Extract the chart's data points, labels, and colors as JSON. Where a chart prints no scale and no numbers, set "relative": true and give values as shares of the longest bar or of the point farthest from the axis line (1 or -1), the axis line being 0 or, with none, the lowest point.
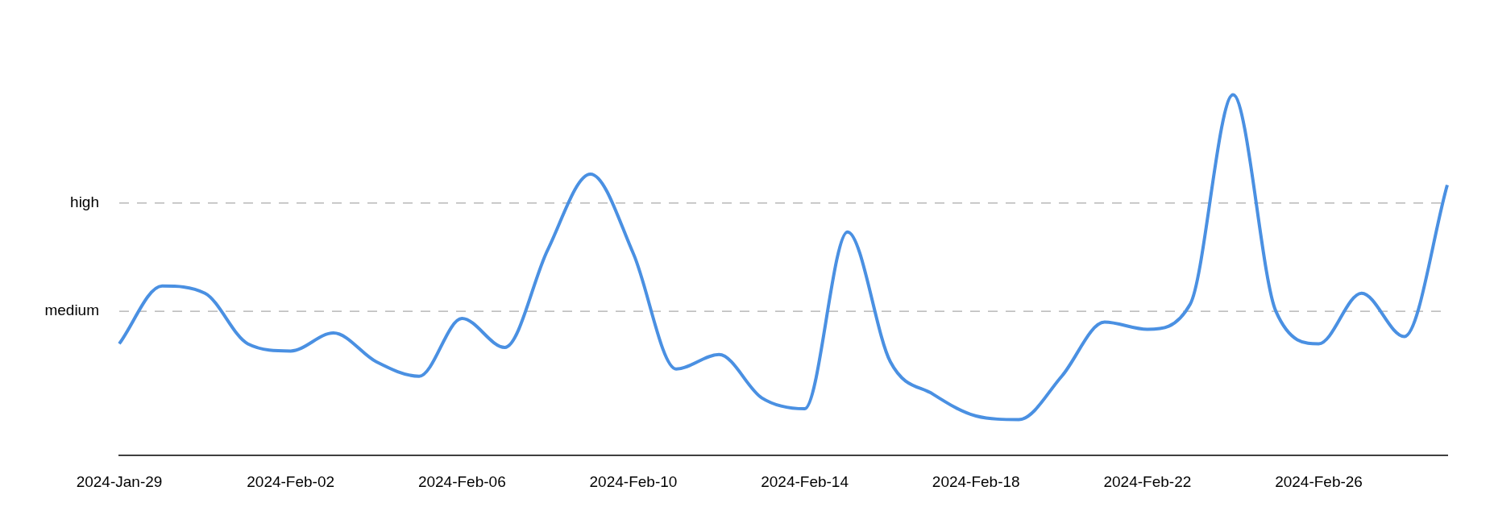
{
  "chart_data": {
    "type": "line",
    "relative": true,
    "categories": [
      "2024-Jan-29",
      null,
      null,
      null,
      "2024-Feb-02",
      null,
      null,
      null,
      "2024-Feb-06",
      null,
      null,
      null,
      "2024-Feb-10",
      null,
      null,
      null,
      "2024-Feb-14",
      null,
      null,
      null,
      "2024-Feb-18",
      null,
      null,
      null,
      "2024-Feb-22",
      null,
      null,
      null,
      "2024-Feb-26",
      null,
      null,
      null
    ],
    "series": [
      {
        "color": "#4a90e2",
        "values": [
          0.31,
          0.47,
          0.45,
          0.31,
          0.29,
          0.34,
          0.26,
          0.22,
          0.38,
          0.3,
          0.57,
          0.78,
          0.56,
          0.24,
          0.28,
          0.16,
          0.13,
          0.62,
          0.26,
          0.17,
          0.11,
          0.1,
          0.22,
          0.37,
          0.35,
          0.42,
          1,
          0.4,
          0.31,
          0.45,
          0.33,
          0.75
        ]
      }
    ],
    "ref_lines": [
      {
        "axis": "y",
        "value": 0.4,
        "label": "medium",
        "color": "#aaaaaa",
        "line_style": "dashed"
      },
      {
        "axis": "y",
        "value": 0.7,
        "label": "high",
        "color": "#aaaaaa",
        "line_style": "dashed"
      }
    ],
    "legend": false,
    "marker": "none",
    "line_style": "solid"
  }
}
